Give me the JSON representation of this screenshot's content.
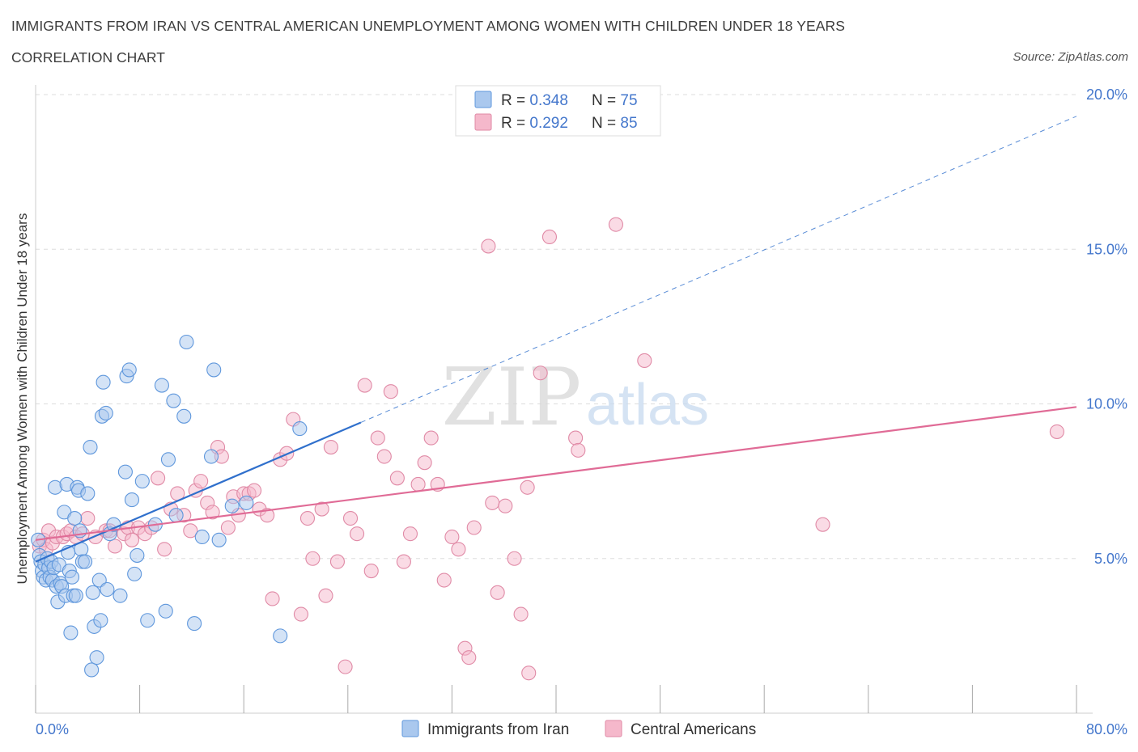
{
  "header": {
    "title": "IMMIGRANTS FROM IRAN VS CENTRAL AMERICAN UNEMPLOYMENT AMONG WOMEN WITH CHILDREN UNDER 18 YEARS",
    "subtitle": "CORRELATION CHART",
    "source": "Source: ZipAtlas.com"
  },
  "watermark": {
    "zip": "ZIP",
    "atlas": "atlas"
  },
  "colors": {
    "blue_fill": "#aac8ee",
    "blue_stroke": "#5f97dc",
    "blue_line": "#3070cc",
    "pink_fill": "#f5b8cb",
    "pink_stroke": "#e08aa6",
    "pink_line": "#e06b96",
    "axis_text": "#4477cc",
    "grid": "#dddddd"
  },
  "legend_top": {
    "rows": [
      {
        "r_label": "R = ",
        "r_value": "0.348",
        "n_label": "N = ",
        "n_value": "75",
        "series": "blue"
      },
      {
        "r_label": "R = ",
        "r_value": "0.292",
        "n_label": "N = ",
        "n_value": "85",
        "series": "pink"
      }
    ]
  },
  "chart_data": {
    "type": "scatter",
    "title": "IMMIGRANTS FROM IRAN VS CENTRAL AMERICAN UNEMPLOYMENT AMONG WOMEN WITH CHILDREN UNDER 18 YEARS",
    "subtitle": "CORRELATION CHART",
    "xlabel": "",
    "ylabel": "Unemployment Among Women with Children Under 18 years",
    "xlim": [
      0,
      80
    ],
    "ylim": [
      0,
      20
    ],
    "x_tick_labels": [
      "0.0%",
      "80.0%"
    ],
    "y_tick_labels": [
      "5.0%",
      "10.0%",
      "15.0%",
      "20.0%"
    ],
    "y_ticks": [
      5,
      10,
      15,
      20
    ],
    "x_ticks": [
      0,
      8,
      16,
      24,
      32,
      40,
      48,
      56,
      64,
      72,
      80
    ],
    "grid": "horizontal dashed",
    "legend_placement": "bottom-center",
    "series": [
      {
        "name": "Immigrants from Iran",
        "color": "blue",
        "R": 0.348,
        "N": 75,
        "trend": {
          "x": [
            0,
            25
          ],
          "y": [
            4.9,
            9.4
          ],
          "extended": {
            "x": [
              25,
              80
            ],
            "y": [
              9.4,
              19.3
            ]
          }
        },
        "points": [
          [
            0.2,
            5.6
          ],
          [
            0.3,
            5.1
          ],
          [
            0.4,
            4.9
          ],
          [
            0.5,
            4.6
          ],
          [
            0.6,
            4.4
          ],
          [
            0.7,
            4.8
          ],
          [
            0.8,
            4.3
          ],
          [
            0.9,
            5.0
          ],
          [
            1.0,
            4.7
          ],
          [
            1.1,
            4.4
          ],
          [
            1.2,
            4.9
          ],
          [
            1.3,
            4.3
          ],
          [
            1.4,
            4.7
          ],
          [
            1.5,
            7.3
          ],
          [
            1.6,
            4.1
          ],
          [
            1.7,
            3.6
          ],
          [
            1.8,
            4.8
          ],
          [
            1.9,
            4.2
          ],
          [
            2.0,
            4.1
          ],
          [
            2.2,
            6.5
          ],
          [
            2.3,
            3.8
          ],
          [
            2.4,
            7.4
          ],
          [
            2.5,
            5.2
          ],
          [
            2.6,
            4.6
          ],
          [
            2.7,
            2.6
          ],
          [
            2.8,
            4.4
          ],
          [
            2.9,
            3.8
          ],
          [
            3.0,
            6.3
          ],
          [
            3.1,
            3.8
          ],
          [
            3.2,
            7.3
          ],
          [
            3.3,
            7.2
          ],
          [
            3.4,
            5.9
          ],
          [
            3.5,
            5.3
          ],
          [
            3.6,
            4.9
          ],
          [
            3.8,
            4.9
          ],
          [
            4.0,
            7.1
          ],
          [
            4.2,
            8.6
          ],
          [
            4.3,
            1.4
          ],
          [
            4.4,
            3.9
          ],
          [
            4.5,
            2.8
          ],
          [
            4.7,
            1.8
          ],
          [
            4.9,
            4.3
          ],
          [
            5.0,
            3.0
          ],
          [
            5.1,
            9.6
          ],
          [
            5.2,
            10.7
          ],
          [
            5.4,
            9.7
          ],
          [
            5.5,
            4.0
          ],
          [
            5.7,
            5.8
          ],
          [
            6.0,
            6.1
          ],
          [
            6.5,
            3.8
          ],
          [
            6.9,
            7.8
          ],
          [
            7.0,
            10.9
          ],
          [
            7.2,
            11.1
          ],
          [
            7.4,
            6.9
          ],
          [
            7.6,
            4.5
          ],
          [
            7.8,
            5.1
          ],
          [
            8.2,
            7.5
          ],
          [
            8.6,
            3.0
          ],
          [
            9.2,
            6.1
          ],
          [
            9.7,
            10.6
          ],
          [
            10.0,
            3.3
          ],
          [
            10.2,
            8.2
          ],
          [
            10.6,
            10.1
          ],
          [
            10.8,
            6.4
          ],
          [
            11.4,
            9.6
          ],
          [
            11.6,
            12.0
          ],
          [
            12.2,
            2.9
          ],
          [
            12.8,
            5.7
          ],
          [
            13.5,
            8.3
          ],
          [
            13.7,
            11.1
          ],
          [
            14.1,
            5.6
          ],
          [
            15.1,
            6.7
          ],
          [
            16.2,
            6.8
          ],
          [
            18.8,
            2.5
          ],
          [
            20.3,
            9.2
          ]
        ]
      },
      {
        "name": "Central Americans",
        "color": "pink",
        "R": 0.292,
        "N": 85,
        "trend": {
          "x": [
            0,
            80
          ],
          "y": [
            5.6,
            9.9
          ]
        },
        "points": [
          [
            0.3,
            5.4
          ],
          [
            0.6,
            5.6
          ],
          [
            0.8,
            5.3
          ],
          [
            1.0,
            5.9
          ],
          [
            1.3,
            5.5
          ],
          [
            1.6,
            5.7
          ],
          [
            2.1,
            5.7
          ],
          [
            2.4,
            5.8
          ],
          [
            2.7,
            5.9
          ],
          [
            3.1,
            5.7
          ],
          [
            3.6,
            5.8
          ],
          [
            4.0,
            6.3
          ],
          [
            4.6,
            5.7
          ],
          [
            5.4,
            5.9
          ],
          [
            5.7,
            5.9
          ],
          [
            6.1,
            5.4
          ],
          [
            6.8,
            5.8
          ],
          [
            7.1,
            6.0
          ],
          [
            7.4,
            5.6
          ],
          [
            7.9,
            6.0
          ],
          [
            8.4,
            5.8
          ],
          [
            8.9,
            6.0
          ],
          [
            9.4,
            7.6
          ],
          [
            9.9,
            5.3
          ],
          [
            10.4,
            6.6
          ],
          [
            10.9,
            7.1
          ],
          [
            11.4,
            6.4
          ],
          [
            11.9,
            5.9
          ],
          [
            12.3,
            7.2
          ],
          [
            12.7,
            7.5
          ],
          [
            13.2,
            6.8
          ],
          [
            13.6,
            6.5
          ],
          [
            14.0,
            8.6
          ],
          [
            14.3,
            8.3
          ],
          [
            14.8,
            6.0
          ],
          [
            15.2,
            7.0
          ],
          [
            15.6,
            6.4
          ],
          [
            16.0,
            7.1
          ],
          [
            16.4,
            7.1
          ],
          [
            16.8,
            7.2
          ],
          [
            17.2,
            6.6
          ],
          [
            17.8,
            6.4
          ],
          [
            18.2,
            3.7
          ],
          [
            18.8,
            8.2
          ],
          [
            19.3,
            8.4
          ],
          [
            19.8,
            9.5
          ],
          [
            20.4,
            3.2
          ],
          [
            20.9,
            6.3
          ],
          [
            21.3,
            5.0
          ],
          [
            22.0,
            6.6
          ],
          [
            22.3,
            3.8
          ],
          [
            22.7,
            8.6
          ],
          [
            23.2,
            4.9
          ],
          [
            23.8,
            1.5
          ],
          [
            24.2,
            6.3
          ],
          [
            24.7,
            5.8
          ],
          [
            25.3,
            10.6
          ],
          [
            25.8,
            4.6
          ],
          [
            26.3,
            8.9
          ],
          [
            26.8,
            8.3
          ],
          [
            27.3,
            10.4
          ],
          [
            27.8,
            7.6
          ],
          [
            28.3,
            4.9
          ],
          [
            28.8,
            5.8
          ],
          [
            29.4,
            7.4
          ],
          [
            29.9,
            8.1
          ],
          [
            30.4,
            8.9
          ],
          [
            30.9,
            7.4
          ],
          [
            31.4,
            4.3
          ],
          [
            32.0,
            5.7
          ],
          [
            32.5,
            5.3
          ],
          [
            33.0,
            2.1
          ],
          [
            33.3,
            1.8
          ],
          [
            33.7,
            6.0
          ],
          [
            34.8,
            15.1
          ],
          [
            35.1,
            6.8
          ],
          [
            35.5,
            3.9
          ],
          [
            36.1,
            6.7
          ],
          [
            36.8,
            5.0
          ],
          [
            37.3,
            3.2
          ],
          [
            37.8,
            7.3
          ],
          [
            37.9,
            1.3
          ],
          [
            39.5,
            15.4
          ],
          [
            41.5,
            8.9
          ],
          [
            44.6,
            15.8
          ]
        ]
      }
    ],
    "extra_pink_points": [
      [
        38.8,
        11.0
      ],
      [
        41.7,
        8.5
      ],
      [
        46.8,
        11.4
      ],
      [
        60.5,
        6.1
      ],
      [
        78.5,
        9.1
      ]
    ]
  },
  "legend_bottom": {
    "items": [
      {
        "label": "Immigrants from Iran",
        "series": "blue"
      },
      {
        "label": "Central Americans",
        "series": "pink"
      }
    ]
  }
}
